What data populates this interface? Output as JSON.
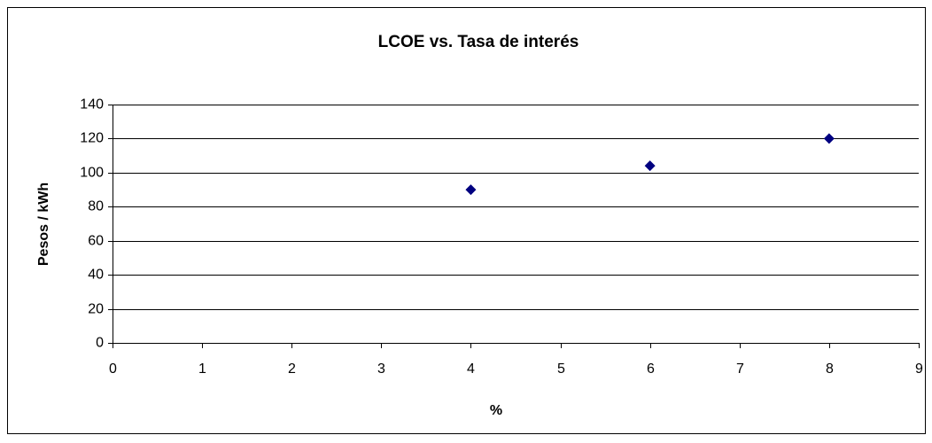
{
  "chart_data": {
    "type": "scatter",
    "title": "LCOE vs. Tasa de interés",
    "x_label": "%",
    "y_label": "Pesos / kWh",
    "series": [
      {
        "color": "#000080",
        "x": [
          4,
          6,
          8
        ],
        "values": [
          90,
          104,
          120
        ]
      }
    ],
    "xlim": [
      0,
      9
    ],
    "xticks": [
      0,
      1,
      2,
      3,
      4,
      5,
      6,
      7,
      8,
      9
    ],
    "ylim": [
      0,
      140
    ],
    "yticks": [
      0,
      20,
      40,
      60,
      80,
      100,
      120,
      140
    ],
    "grid": true
  }
}
